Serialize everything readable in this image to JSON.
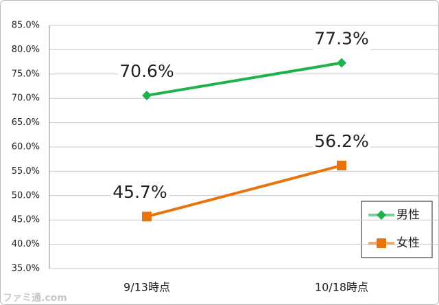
{
  "chart_data": {
    "type": "line",
    "categories": [
      "9/13時点",
      "10/18時点"
    ],
    "series": [
      {
        "name": "男性",
        "color": "#1fb24a",
        "marker": "diamond",
        "values": [
          70.6,
          77.3
        ],
        "value_labels": [
          "70.6%",
          "77.3%"
        ]
      },
      {
        "name": "女性",
        "color": "#e8740f",
        "marker": "square",
        "values": [
          45.7,
          56.2
        ],
        "value_labels": [
          "45.7%",
          "56.2%"
        ]
      }
    ],
    "ylim": [
      35,
      85
    ],
    "yticks": [
      {
        "value": 35,
        "label": "35.0%"
      },
      {
        "value": 40,
        "label": "40.0%"
      },
      {
        "value": 45,
        "label": "45.0%"
      },
      {
        "value": 50,
        "label": "50.0%"
      },
      {
        "value": 55,
        "label": "55.0%"
      },
      {
        "value": 60,
        "label": "60.0%"
      },
      {
        "value": 65,
        "label": "65.0%"
      },
      {
        "value": 70,
        "label": "70.0%"
      },
      {
        "value": 75,
        "label": "75.0%"
      },
      {
        "value": 80,
        "label": "80.0%"
      },
      {
        "value": 85,
        "label": "85.0%"
      }
    ],
    "grid": true,
    "legend": "bottom-right",
    "watermark": "ファミ通.com"
  }
}
